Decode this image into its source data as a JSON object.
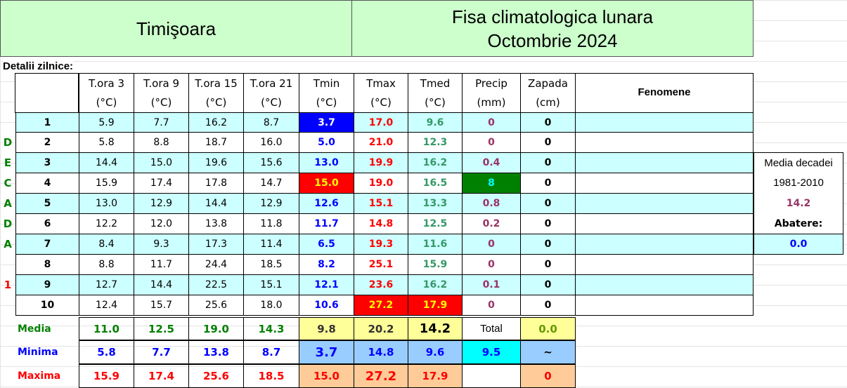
{
  "header": {
    "city": "Timişoara",
    "title": "Fisa climatologica lunara",
    "period": "Octombrie 2024"
  },
  "section_label": "Detalii zilnice:",
  "table": {
    "columns": [
      {
        "name": "T.ora 3",
        "unit": "(°C)"
      },
      {
        "name": "T.ora 9",
        "unit": "(°C)"
      },
      {
        "name": "T.ora 15",
        "unit": "(°C)"
      },
      {
        "name": "T.ora 21",
        "unit": "(°C)"
      },
      {
        "name": "Tmin",
        "unit": "(°C)"
      },
      {
        "name": "Tmax",
        "unit": "(°C)"
      },
      {
        "name": "Tmed",
        "unit": "(°C)"
      },
      {
        "name": "Precip",
        "unit": "(mm)"
      },
      {
        "name": "Zapada",
        "unit": "(cm)"
      }
    ],
    "phenomena_header": "Fenomene",
    "rows": [
      {
        "day": "1",
        "values": [
          "5.9",
          "7.7",
          "16.2",
          "8.7",
          "3.7",
          "17.0",
          "9.6",
          "0",
          "0"
        ]
      },
      {
        "side": "D",
        "day": "2",
        "values": [
          "5.8",
          "8.8",
          "18.7",
          "16.0",
          "5.0",
          "21.0",
          "12.3",
          "0",
          "0"
        ]
      },
      {
        "side": "E",
        "day": "3",
        "values": [
          "14.4",
          "15.0",
          "19.6",
          "15.6",
          "13.0",
          "19.9",
          "16.2",
          "0.4",
          "0"
        ]
      },
      {
        "side": "C",
        "day": "4",
        "values": [
          "15.9",
          "17.4",
          "17.8",
          "14.7",
          "15.0",
          "19.0",
          "16.5",
          "8",
          "0"
        ]
      },
      {
        "side": "A",
        "day": "5",
        "values": [
          "13.0",
          "12.9",
          "14.4",
          "12.9",
          "12.6",
          "15.1",
          "13.3",
          "0.8",
          "0"
        ]
      },
      {
        "side": "D",
        "day": "6",
        "values": [
          "12.2",
          "12.0",
          "13.8",
          "11.8",
          "11.7",
          "14.8",
          "12.5",
          "0.2",
          "0"
        ]
      },
      {
        "side": "A",
        "day": "7",
        "values": [
          "8.4",
          "9.3",
          "17.3",
          "11.4",
          "6.5",
          "19.3",
          "11.6",
          "0",
          "0"
        ]
      },
      {
        "day": "8",
        "values": [
          "8.8",
          "11.7",
          "24.4",
          "18.5",
          "8.2",
          "25.1",
          "15.9",
          "0",
          "0"
        ]
      },
      {
        "side": "1",
        "day": "9",
        "values": [
          "12.7",
          "14.4",
          "22.5",
          "15.1",
          "12.1",
          "23.6",
          "16.2",
          "0.1",
          "0"
        ]
      },
      {
        "day": "10",
        "values": [
          "12.4",
          "15.7",
          "25.6",
          "18.0",
          "10.6",
          "27.2",
          "17.9",
          "0",
          "0"
        ]
      }
    ],
    "summary": [
      {
        "label": "Media",
        "values": [
          "11.0",
          "12.5",
          "19.0",
          "14.3",
          "9.8",
          "20.2",
          "14.2",
          "Total",
          "0.0"
        ]
      },
      {
        "label": "Minima",
        "values": [
          "5.8",
          "7.7",
          "13.8",
          "8.7",
          "3.7",
          "14.8",
          "9.6",
          "9.5",
          "~"
        ]
      },
      {
        "label": "Maxima",
        "values": [
          "15.9",
          "17.4",
          "25.6",
          "18.5",
          "15.0",
          "27.2",
          "17.9",
          null,
          "0"
        ]
      }
    ]
  },
  "decade_box": {
    "label": "Media decadei",
    "period": "1981-2010",
    "mean": "14.2",
    "deviation_label": "Abatere:",
    "deviation": "0.0"
  }
}
